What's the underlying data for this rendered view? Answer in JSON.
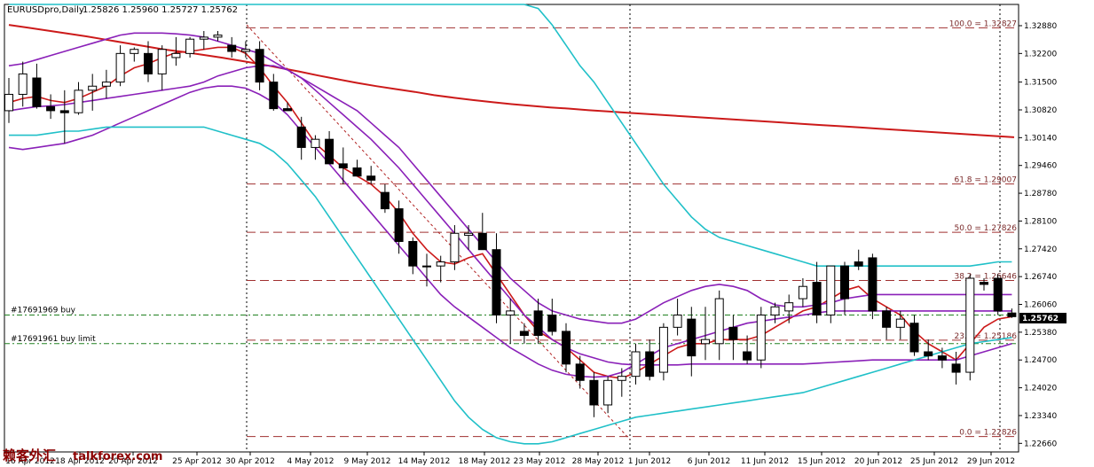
{
  "header": {
    "symbol": "EURUSDpro,Daily",
    "ohlc": "1.25826 1.25960 1.25727 1.25762"
  },
  "watermark": {
    "cn": "赖客外汇",
    "site": "talkforex.com"
  },
  "chart_data": {
    "type": "candlestick",
    "title": "EURUSDpro,Daily",
    "ylim": [
      1.2245,
      1.334
    ],
    "y_ticks": [
      "1.32880",
      "1.32200",
      "1.31500",
      "1.30820",
      "1.30140",
      "1.29460",
      "1.28780",
      "1.28100",
      "1.27420",
      "1.26740",
      "1.26060",
      "1.25380",
      "1.24700",
      "1.24020",
      "1.23340",
      "1.22660"
    ],
    "x_labels": [
      "16 Apr 2012",
      "18 Apr 2012",
      "20 Apr 2012",
      "25 Apr 2012",
      "30 Apr 2012",
      "4 May 2012",
      "9 May 2012",
      "14 May 2012",
      "18 May 2012",
      "23 May 2012",
      "28 May 2012",
      "1 Jun 2012",
      "6 Jun 2012",
      "11 Jun 2012",
      "15 Jun 2012",
      "20 Jun 2012",
      "25 Jun 2012",
      "29 Jun 2012"
    ],
    "current_price": "1.25762",
    "fib_levels": [
      {
        "label": "100.0 = 1.32827",
        "value": 1.32827
      },
      {
        "label": "61.8 = 1.29007",
        "value": 1.29007
      },
      {
        "label": "50.0 = 1.27826",
        "value": 1.27826
      },
      {
        "label": "38.2 = 1.26646",
        "value": 1.26646
      },
      {
        "label": "23.6 = 1.25186",
        "value": 1.25186
      },
      {
        "label": "0.0 = 1.22826",
        "value": 1.22826
      }
    ],
    "orders": [
      {
        "label": "#17691969 buy",
        "value": 1.258
      },
      {
        "label": "#17691961 buy limit",
        "value": 1.251
      }
    ],
    "candles": [
      [
        1.308,
        1.316,
        1.305,
        1.312
      ],
      [
        1.312,
        1.32,
        1.309,
        1.317
      ],
      [
        1.316,
        1.3195,
        1.3085,
        1.309
      ],
      [
        1.309,
        1.312,
        1.306,
        1.308
      ],
      [
        1.308,
        1.313,
        1.3,
        1.3075
      ],
      [
        1.3075,
        1.315,
        1.307,
        1.313
      ],
      [
        1.313,
        1.317,
        1.308,
        1.314
      ],
      [
        1.314,
        1.318,
        1.311,
        1.315
      ],
      [
        1.315,
        1.324,
        1.314,
        1.322
      ],
      [
        1.322,
        1.3235,
        1.32,
        1.323
      ],
      [
        1.322,
        1.325,
        1.315,
        1.317
      ],
      [
        1.317,
        1.324,
        1.313,
        1.323
      ],
      [
        1.321,
        1.326,
        1.319,
        1.322
      ],
      [
        1.322,
        1.326,
        1.321,
        1.3255
      ],
      [
        1.3255,
        1.3275,
        1.323,
        1.326
      ],
      [
        1.326,
        1.3275,
        1.325,
        1.3265
      ],
      [
        1.324,
        1.326,
        1.321,
        1.3225
      ],
      [
        1.3225,
        1.325,
        1.321,
        1.323
      ],
      [
        1.323,
        1.325,
        1.313,
        1.315
      ],
      [
        1.315,
        1.317,
        1.308,
        1.3085
      ],
      [
        1.3085,
        1.31,
        1.308,
        1.308
      ],
      [
        1.304,
        1.3065,
        1.296,
        1.299
      ],
      [
        1.299,
        1.302,
        1.296,
        1.301
      ],
      [
        1.301,
        1.303,
        1.295,
        1.295
      ],
      [
        1.295,
        1.299,
        1.29,
        1.294
      ],
      [
        1.294,
        1.296,
        1.292,
        1.292
      ],
      [
        1.292,
        1.2945,
        1.29,
        1.291
      ],
      [
        1.288,
        1.29,
        1.283,
        1.284
      ],
      [
        1.284,
        1.286,
        1.273,
        1.276
      ],
      [
        1.276,
        1.277,
        1.268,
        1.27
      ],
      [
        1.27,
        1.273,
        1.265,
        1.27
      ],
      [
        1.27,
        1.2725,
        1.266,
        1.271
      ],
      [
        1.271,
        1.28,
        1.269,
        1.278
      ],
      [
        1.2775,
        1.28,
        1.274,
        1.278
      ],
      [
        1.278,
        1.283,
        1.274,
        1.274
      ],
      [
        1.274,
        1.278,
        1.256,
        1.258
      ],
      [
        1.258,
        1.262,
        1.251,
        1.259
      ],
      [
        1.254,
        1.256,
        1.251,
        1.253
      ],
      [
        1.259,
        1.262,
        1.251,
        1.253
      ],
      [
        1.258,
        1.262,
        1.253,
        1.254
      ],
      [
        1.254,
        1.256,
        1.244,
        1.246
      ],
      [
        1.246,
        1.248,
        1.24,
        1.242
      ],
      [
        1.242,
        1.244,
        1.233,
        1.236
      ],
      [
        1.236,
        1.243,
        1.234,
        1.242
      ],
      [
        1.242,
        1.245,
        1.238,
        1.243
      ],
      [
        1.243,
        1.251,
        1.241,
        1.249
      ],
      [
        1.249,
        1.252,
        1.242,
        1.243
      ],
      [
        1.244,
        1.256,
        1.242,
        1.255
      ],
      [
        1.255,
        1.262,
        1.253,
        1.258
      ],
      [
        1.257,
        1.26,
        1.243,
        1.248
      ],
      [
        1.251,
        1.26,
        1.247,
        1.252
      ],
      [
        1.251,
        1.264,
        1.247,
        1.262
      ],
      [
        1.255,
        1.258,
        1.247,
        1.252
      ],
      [
        1.249,
        1.253,
        1.246,
        1.247
      ],
      [
        1.247,
        1.26,
        1.245,
        1.258
      ],
      [
        1.258,
        1.261,
        1.256,
        1.26
      ],
      [
        1.259,
        1.263,
        1.256,
        1.261
      ],
      [
        1.262,
        1.267,
        1.26,
        1.265
      ],
      [
        1.266,
        1.271,
        1.256,
        1.258
      ],
      [
        1.258,
        1.27,
        1.256,
        1.27
      ],
      [
        1.27,
        1.271,
        1.258,
        1.262
      ],
      [
        1.271,
        1.274,
        1.269,
        1.27
      ],
      [
        1.272,
        1.273,
        1.257,
        1.259
      ],
      [
        1.259,
        1.26,
        1.252,
        1.255
      ],
      [
        1.255,
        1.259,
        1.252,
        1.257
      ],
      [
        1.256,
        1.258,
        1.248,
        1.249
      ],
      [
        1.249,
        1.252,
        1.247,
        1.248
      ],
      [
        1.248,
        1.25,
        1.245,
        1.247
      ],
      [
        1.246,
        1.249,
        1.241,
        1.244
      ],
      [
        1.244,
        1.268,
        1.242,
        1.267
      ],
      [
        1.266,
        1.267,
        1.264,
        1.2655
      ],
      [
        1.267,
        1.268,
        1.258,
        1.259
      ],
      [
        1.2585,
        1.2596,
        1.2573,
        1.2576
      ]
    ],
    "lines": [
      {
        "name": "slow MA",
        "color": "#cc1a1a",
        "values": [
          1.329,
          1.3283,
          1.3276,
          1.3269,
          1.3262,
          1.3254,
          1.3246,
          1.3238,
          1.323,
          1.3224,
          1.3217,
          1.321,
          1.3202,
          1.3194,
          1.3185,
          1.3176,
          1.3166,
          1.3157,
          1.3148,
          1.314,
          1.3133,
          1.3126,
          1.3118,
          1.3112,
          1.3106,
          1.3101,
          1.3096,
          1.3092,
          1.3088,
          1.3085,
          1.3081,
          1.3078,
          1.3075,
          1.3072,
          1.3069,
          1.3066,
          1.3063,
          1.306,
          1.3057,
          1.3054,
          1.3051,
          1.3048,
          1.3045,
          1.3042,
          1.3039,
          1.3036,
          1.3033,
          1.303,
          1.3027,
          1.3024,
          1.3021,
          1.3018,
          1.3015
        ]
      },
      {
        "name": "fast MA",
        "color": "#cc1a1a",
        "values": [
          1.31,
          1.311,
          1.3115,
          1.3105,
          1.31,
          1.311,
          1.3125,
          1.314,
          1.3165,
          1.3185,
          1.3195,
          1.321,
          1.3222,
          1.3225,
          1.323,
          1.3235,
          1.3235,
          1.322,
          1.3185,
          1.314,
          1.31,
          1.305,
          1.3,
          1.297,
          1.294,
          1.292,
          1.29,
          1.287,
          1.283,
          1.278,
          1.274,
          1.271,
          1.2705,
          1.272,
          1.273,
          1.268,
          1.263,
          1.258,
          1.254,
          1.252,
          1.25,
          1.247,
          1.244,
          1.243,
          1.2425,
          1.244,
          1.246,
          1.248,
          1.25,
          1.251,
          1.251,
          1.252,
          1.252,
          1.252,
          1.253,
          1.255,
          1.257,
          1.259,
          1.26,
          1.262,
          1.264,
          1.265,
          1.262,
          1.26,
          1.258,
          1.254,
          1.251,
          1.249,
          1.247,
          1.251,
          1.255,
          1.257,
          1.2576
        ]
      },
      {
        "name": "band mid",
        "color": "#8a20b8",
        "values": [
          1.308,
          1.3085,
          1.309,
          1.3092,
          1.3095,
          1.31,
          1.3105,
          1.311,
          1.3115,
          1.312,
          1.3125,
          1.313,
          1.3135,
          1.314,
          1.315,
          1.3165,
          1.3175,
          1.3185,
          1.319,
          1.319,
          1.318,
          1.316,
          1.313,
          1.31,
          1.307,
          1.304,
          1.301,
          1.2975,
          1.294,
          1.29,
          1.286,
          1.282,
          1.278,
          1.274,
          1.27,
          1.266,
          1.262,
          1.258,
          1.255,
          1.252,
          1.25,
          1.2485,
          1.2475,
          1.2465,
          1.246,
          1.2458,
          1.2458,
          1.2458,
          1.2458,
          1.246,
          1.246,
          1.246,
          1.246,
          1.246,
          1.246,
          1.246,
          1.246,
          1.246,
          1.2462,
          1.2464,
          1.2466,
          1.2468,
          1.247,
          1.247,
          1.247,
          1.247,
          1.247,
          1.247,
          1.247,
          1.248,
          1.249,
          1.25,
          1.251
        ]
      },
      {
        "name": "band upper",
        "color": "#8a20b8",
        "values": [
          1.319,
          1.3195,
          1.3205,
          1.3215,
          1.3225,
          1.3235,
          1.3245,
          1.3255,
          1.3265,
          1.327,
          1.327,
          1.327,
          1.3268,
          1.3265,
          1.326,
          1.325,
          1.324,
          1.323,
          1.322,
          1.32,
          1.318,
          1.316,
          1.314,
          1.312,
          1.31,
          1.308,
          1.305,
          1.302,
          1.299,
          1.295,
          1.291,
          1.287,
          1.283,
          1.279,
          1.275,
          1.271,
          1.267,
          1.264,
          1.261,
          1.259,
          1.258,
          1.257,
          1.2565,
          1.256,
          1.256,
          1.257,
          1.259,
          1.261,
          1.2625,
          1.264,
          1.265,
          1.2655,
          1.265,
          1.264,
          1.262,
          1.2605,
          1.26,
          1.26,
          1.2605,
          1.261,
          1.262,
          1.2625,
          1.263,
          1.263,
          1.263,
          1.263,
          1.263,
          1.263,
          1.263,
          1.263,
          1.263,
          1.263,
          1.263
        ]
      },
      {
        "name": "band lower",
        "color": "#8a20b8",
        "values": [
          1.299,
          1.2985,
          1.299,
          1.2995,
          1.3,
          1.301,
          1.302,
          1.3035,
          1.305,
          1.3065,
          1.308,
          1.3095,
          1.311,
          1.3125,
          1.3135,
          1.314,
          1.314,
          1.3135,
          1.312,
          1.31,
          1.307,
          1.303,
          1.299,
          1.295,
          1.291,
          1.287,
          1.283,
          1.279,
          1.275,
          1.271,
          1.267,
          1.263,
          1.26,
          1.2575,
          1.255,
          1.2525,
          1.25,
          1.248,
          1.246,
          1.2445,
          1.2435,
          1.243,
          1.2428,
          1.243,
          1.244,
          1.246,
          1.248,
          1.25,
          1.251,
          1.252,
          1.253,
          1.254,
          1.255,
          1.256,
          1.2565,
          1.257,
          1.2575,
          1.258,
          1.2585,
          1.259,
          1.259,
          1.259,
          1.259,
          1.259,
          1.259,
          1.259,
          1.259,
          1.259,
          1.259,
          1.259,
          1.259,
          1.259,
          1.259
        ]
      },
      {
        "name": "outer upper",
        "color": "#20c0c8",
        "values": [
          1.338,
          1.338,
          1.338,
          1.338,
          1.338,
          1.338,
          1.338,
          1.338,
          1.338,
          1.338,
          1.338,
          1.338,
          1.338,
          1.338,
          1.338,
          1.338,
          1.338,
          1.338,
          1.338,
          1.338,
          1.338,
          1.338,
          1.338,
          1.338,
          1.338,
          1.338,
          1.338,
          1.338,
          1.338,
          1.338,
          1.338,
          1.338,
          1.338,
          1.338,
          1.338,
          1.338,
          1.338,
          1.3365,
          1.333,
          1.329,
          1.324,
          1.319,
          1.315,
          1.31,
          1.305,
          1.3,
          1.295,
          1.29,
          1.286,
          1.282,
          1.279,
          1.277,
          1.276,
          1.275,
          1.274,
          1.273,
          1.272,
          1.271,
          1.27,
          1.27,
          1.27,
          1.27,
          1.27,
          1.27,
          1.27,
          1.27,
          1.27,
          1.27,
          1.27,
          1.27,
          1.2705,
          1.271,
          1.271
        ]
      },
      {
        "name": "outer lower",
        "color": "#20c0c8",
        "values": [
          1.302,
          1.302,
          1.302,
          1.3025,
          1.303,
          1.303,
          1.3035,
          1.304,
          1.304,
          1.304,
          1.304,
          1.304,
          1.304,
          1.304,
          1.304,
          1.303,
          1.302,
          1.301,
          1.3,
          1.298,
          1.295,
          1.291,
          1.287,
          1.282,
          1.277,
          1.272,
          1.267,
          1.262,
          1.257,
          1.252,
          1.247,
          1.242,
          1.237,
          1.233,
          1.23,
          1.228,
          1.227,
          1.2265,
          1.2265,
          1.227,
          1.228,
          1.229,
          1.23,
          1.231,
          1.232,
          1.233,
          1.2335,
          1.234,
          1.2345,
          1.235,
          1.2355,
          1.236,
          1.2365,
          1.237,
          1.2375,
          1.238,
          1.2385,
          1.239,
          1.24,
          1.241,
          1.242,
          1.243,
          1.244,
          1.245,
          1.246,
          1.247,
          1.248,
          1.249,
          1.25,
          1.251,
          1.2515,
          1.252,
          1.2525
        ]
      }
    ]
  }
}
